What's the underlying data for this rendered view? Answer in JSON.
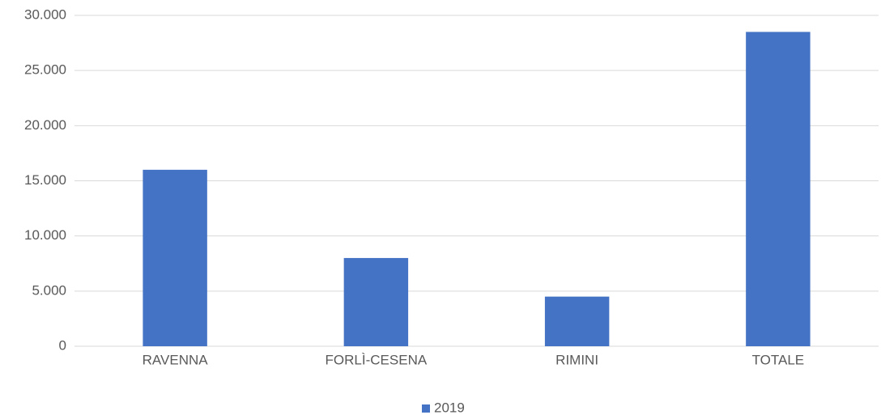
{
  "chart_data": {
    "type": "bar",
    "categories": [
      "RAVENNA",
      "FORLÌ-CESENA",
      "RIMINI",
      "TOTALE"
    ],
    "series": [
      {
        "name": "2019",
        "color": "#4472c4",
        "values": [
          16000,
          8000,
          4500,
          28500
        ]
      }
    ],
    "ylim": [
      0,
      30000
    ],
    "yticks": [
      0,
      {
        "value": 5000,
        "label": "5.000"
      },
      {
        "value": 10000,
        "label": "10.000"
      },
      {
        "value": 15000,
        "label": "15.000"
      },
      {
        "value": 20000,
        "label": "20.000"
      },
      {
        "value": 25000,
        "label": "25.000"
      },
      {
        "value": 30000,
        "label": "30.000"
      }
    ],
    "grid": true,
    "legend": "bottom"
  }
}
